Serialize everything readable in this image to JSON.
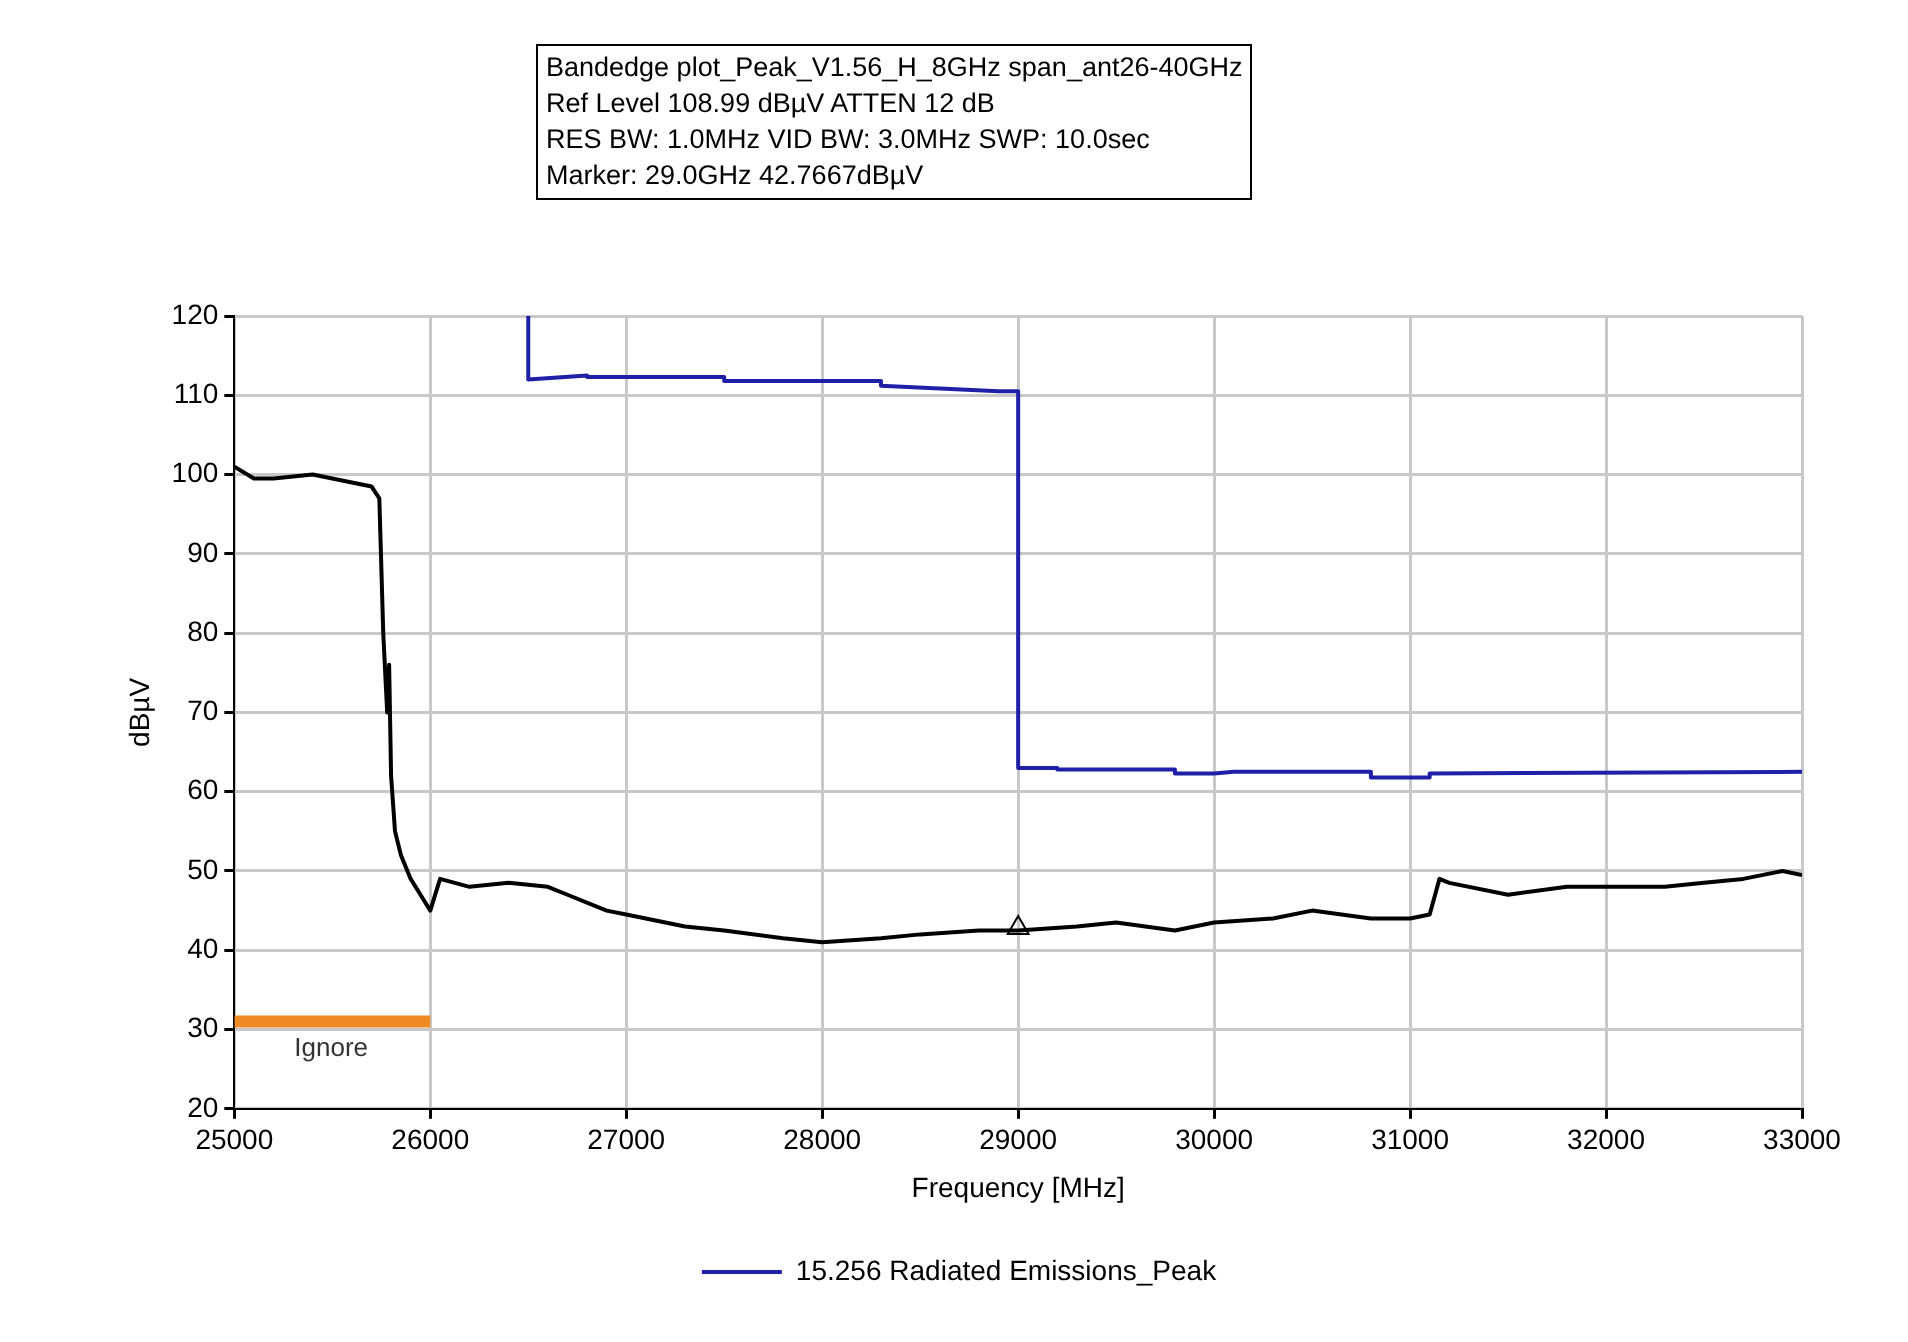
{
  "chart_data": {
    "type": "line",
    "title": "Bandedge plot_Peak_V1.56_H_8GHz span_ant26-40GHz",
    "annotations": [
      "Ref Level 108.99 dBµV    ATTEN 12 dB",
      "RES BW: 1.0MHz  VID BW: 3.0MHz  SWP: 10.0sec",
      "Marker: 29.0GHz  42.7667dBµV",
      "Ignore"
    ],
    "xlabel": "Frequency [MHz]",
    "ylabel": "dBµV",
    "xlim": [
      25000,
      33000
    ],
    "xticks": [
      25000,
      26000,
      27000,
      28000,
      29000,
      30000,
      31000,
      32000,
      33000
    ],
    "ylim": [
      20,
      120
    ],
    "yticks": [
      20,
      30,
      40,
      50,
      60,
      70,
      80,
      90,
      100,
      110,
      120
    ],
    "grid": true,
    "legend": "bottom",
    "marker": "none",
    "line_style": "solid",
    "series": [
      {
        "name": "15.256 Radiated Emissions_Peak",
        "color": "#1f1fa8",
        "x": [
          26500,
          26500,
          26800,
          26800,
          27500,
          27500,
          28300,
          28300,
          28900,
          29000,
          29000,
          29200,
          29200,
          29800,
          29800,
          30000,
          30100,
          30800,
          30800,
          31100,
          31100,
          33000
        ],
        "values": [
          120,
          112,
          112.5,
          112.3,
          112.3,
          111.8,
          111.8,
          111.2,
          110.5,
          110.5,
          63,
          63,
          62.8,
          62.8,
          62.3,
          62.3,
          62.5,
          62.5,
          61.8,
          61.8,
          62.3,
          62.5
        ]
      },
      {
        "color": "#000000",
        "x": [
          25000,
          25100,
          25200,
          25400,
          25600,
          25700,
          25740,
          25760,
          25780,
          25790,
          25800,
          25820,
          25850,
          25900,
          25950,
          26000,
          26050,
          26200,
          26400,
          26600,
          26700,
          26900,
          27000,
          27300,
          27500,
          27800,
          28000,
          28300,
          28500,
          28800,
          29000,
          29300,
          29500,
          29800,
          30000,
          30300,
          30500,
          30800,
          31000,
          31100,
          31150,
          31200,
          31500,
          31800,
          32000,
          32300,
          32500,
          32700,
          32900,
          33000
        ],
        "values": [
          101,
          99.5,
          99.5,
          100,
          99,
          98.5,
          97,
          80,
          70,
          76,
          62,
          55,
          52,
          49,
          47,
          45,
          49,
          48,
          48.5,
          48,
          47,
          45,
          44.5,
          43,
          42.5,
          41.5,
          41,
          41.5,
          42,
          42.5,
          42.5,
          43,
          43.5,
          42.5,
          43.5,
          44,
          45,
          44,
          44,
          44.5,
          49,
          48.5,
          47,
          48,
          48,
          48,
          48.5,
          49,
          50,
          49.5
        ]
      },
      {
        "color": "#f08a24",
        "x": [
          25000,
          26000
        ],
        "values": [
          31,
          31
        ]
      },
      {
        "type": "scatter",
        "marker": "triangle",
        "color": "#000000",
        "x": [
          29000
        ],
        "values": [
          42.8
        ]
      }
    ]
  }
}
